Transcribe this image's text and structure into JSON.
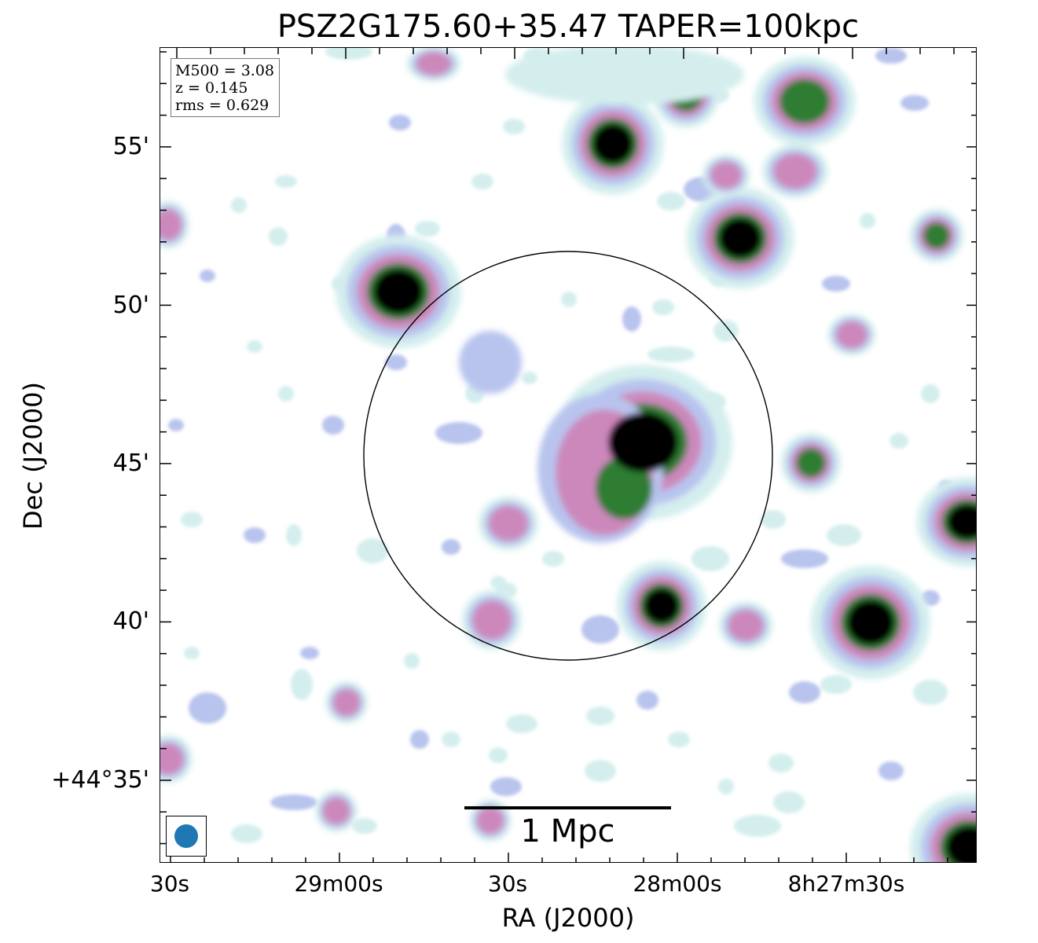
{
  "title": "PSZ2G175.60+35.47 TAPER=100kpc",
  "info_box": {
    "mass": "M500 = 3.08",
    "redshift": "z = 0.145",
    "rms": "rms = 0.629"
  },
  "axes": {
    "xlabel": "RA (J2000)",
    "ylabel": "Dec (J2000)",
    "xticks": [
      "30s",
      "29m00s",
      "30s",
      "28m00s",
      "8h27m30s"
    ],
    "yticks": [
      "55'",
      "50'",
      "45'",
      "40'",
      "+44°35'"
    ]
  },
  "scale_bar": {
    "label": "1 Mpc"
  },
  "colors": {
    "beam": "#1f77b4",
    "frame": "#000000",
    "colormap": [
      "#d4eeee",
      "#b8c4ee",
      "#cc88bb",
      "#2e7d32",
      "#000000"
    ]
  }
}
